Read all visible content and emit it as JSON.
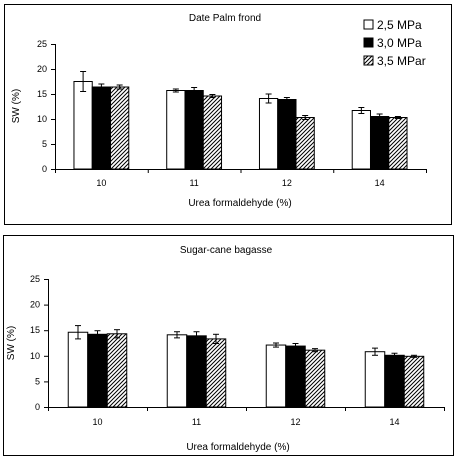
{
  "chart_data": [
    {
      "type": "bar",
      "title": "Date Palm frond",
      "xlabel": "Urea formaldehyde (%)",
      "ylabel": "SW (%)",
      "ylim": [
        0,
        25
      ],
      "yticks": [
        "0",
        "5",
        "10",
        "15",
        "20",
        "25"
      ],
      "categories": [
        "10",
        "11",
        "12",
        "14"
      ],
      "legend_position": "top-right",
      "series": [
        {
          "name": "2,5 MPa",
          "fill": "white",
          "values": [
            17.5,
            15.7,
            14.1,
            11.7
          ],
          "errors": [
            2.0,
            0.3,
            0.9,
            0.6
          ]
        },
        {
          "name": "3,0  MPa",
          "fill": "black",
          "values": [
            16.4,
            15.7,
            13.9,
            10.5
          ],
          "errors": [
            0.6,
            0.6,
            0.4,
            0.5
          ]
        },
        {
          "name": "3,5 MPar",
          "fill": "hatched",
          "values": [
            16.4,
            14.6,
            10.3,
            10.3
          ],
          "errors": [
            0.4,
            0.3,
            0.4,
            0.2
          ]
        }
      ]
    },
    {
      "type": "bar",
      "title": "Sugar-cane bagasse",
      "xlabel": "Urea formaldehyde (%)",
      "ylabel": "SW (%)",
      "ylim": [
        0,
        25
      ],
      "yticks": [
        "0",
        "5",
        "10",
        "15",
        "20",
        "25"
      ],
      "categories": [
        "10",
        "11",
        "12",
        "14"
      ],
      "series": [
        {
          "name": "",
          "fill": "white",
          "values": [
            14.6,
            14.1,
            12.1,
            10.8
          ],
          "errors": [
            1.3,
            0.6,
            0.4,
            0.7
          ]
        },
        {
          "name": "",
          "fill": "black",
          "values": [
            14.2,
            13.9,
            11.9,
            10.1
          ],
          "errors": [
            0.7,
            0.8,
            0.5,
            0.4
          ]
        },
        {
          "name": "",
          "fill": "hatched",
          "values": [
            14.3,
            13.3,
            11.1,
            9.9
          ],
          "errors": [
            0.8,
            0.9,
            0.3,
            0.2
          ]
        }
      ]
    }
  ]
}
